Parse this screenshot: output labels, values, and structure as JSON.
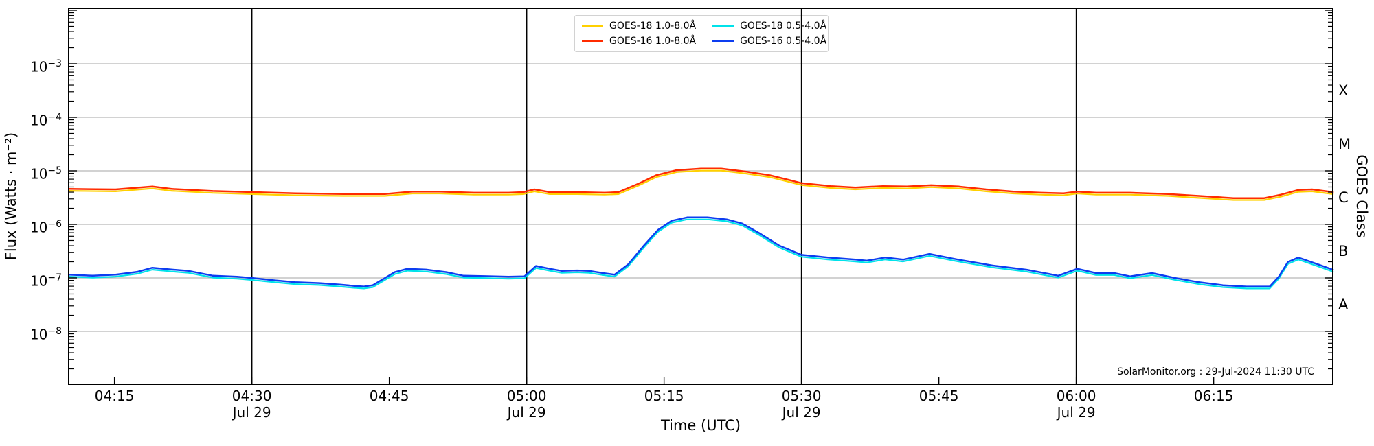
{
  "figure": {
    "source_note": "SolarMonitor.org : 29-Jul-2024 11:30 UTC"
  },
  "chart_data": {
    "type": "line",
    "title": "",
    "xlabel": "Time (UTC)",
    "ylabel_left": "Flux (Watts · m⁻²)",
    "ylabel_right": "GOES Class",
    "x_unit": "decimal_hours_utc",
    "date_sublabel": "Jul 29",
    "xlim_hours": [
      4.1667,
      6.4667
    ],
    "ylim": [
      1e-09,
      0.011
    ],
    "y_scale": "log",
    "grid": {
      "horizontal_decade_exponents": [
        -3,
        -4,
        -5,
        -6,
        -7,
        -8
      ],
      "vertical_hours": [
        4.5,
        5.0,
        5.5,
        6.0
      ],
      "horizontal_color": "#b6b6b6",
      "vertical_color": "#000000"
    },
    "x_ticks": [
      {
        "hour": 4.25,
        "label": "04:15",
        "sublabel": ""
      },
      {
        "hour": 4.5,
        "label": "04:30",
        "sublabel": "Jul 29"
      },
      {
        "hour": 4.75,
        "label": "04:45",
        "sublabel": ""
      },
      {
        "hour": 5.0,
        "label": "05:00",
        "sublabel": "Jul 29"
      },
      {
        "hour": 5.25,
        "label": "05:15",
        "sublabel": ""
      },
      {
        "hour": 5.5,
        "label": "05:30",
        "sublabel": "Jul 29"
      },
      {
        "hour": 5.75,
        "label": "05:45",
        "sublabel": ""
      },
      {
        "hour": 6.0,
        "label": "06:00",
        "sublabel": "Jul 29"
      },
      {
        "hour": 6.25,
        "label": "06:15",
        "sublabel": ""
      }
    ],
    "y_tick_exponents": [
      -3,
      -4,
      -5,
      -6,
      -7,
      -8
    ],
    "goes_class_ticks": [
      {
        "label": "X",
        "flux": 0.00032
      },
      {
        "label": "M",
        "flux": 3.2e-05
      },
      {
        "label": "C",
        "flux": 3.2e-06
      },
      {
        "label": "B",
        "flux": 3.2e-07
      },
      {
        "label": "A",
        "flux": 3.2e-08
      }
    ],
    "legend_order": [
      "GOES-18 1.0-8.0Å",
      "GOES-16 1.0-8.0Å",
      "GOES-18 0.5-4.0Å",
      "GOES-16 0.5-4.0Å"
    ],
    "series": [
      {
        "name": "GOES-18 1.0-8.0Å",
        "color": "#ffd000",
        "width": 2.2,
        "derived_from": "GOES-16 1.0-8.0Å",
        "scale": 0.92
      },
      {
        "name": "GOES-18 0.5-4.0Å",
        "color": "#00e2ea",
        "width": 2.2,
        "derived_from": "GOES-16 0.5-4.0Å",
        "scale": 0.92
      },
      {
        "name": "GOES-16 1.0-8.0Å",
        "color": "#ff2b00",
        "width": 2.5,
        "points": [
          [
            4.167,
            4.6e-06
          ],
          [
            4.252,
            4.5e-06
          ],
          [
            4.319,
            5.1e-06
          ],
          [
            4.354,
            4.6e-06
          ],
          [
            4.429,
            4.2e-06
          ],
          [
            4.502,
            4e-06
          ],
          [
            4.579,
            3.8e-06
          ],
          [
            4.667,
            3.7e-06
          ],
          [
            4.742,
            3.7e-06
          ],
          [
            4.792,
            4.1e-06
          ],
          [
            4.842,
            4.1e-06
          ],
          [
            4.904,
            3.9e-06
          ],
          [
            4.967,
            3.9e-06
          ],
          [
            4.994,
            4e-06
          ],
          [
            5.014,
            4.5e-06
          ],
          [
            5.042,
            4e-06
          ],
          [
            5.092,
            4e-06
          ],
          [
            5.142,
            3.9e-06
          ],
          [
            5.167,
            4e-06
          ],
          [
            5.204,
            5.8e-06
          ],
          [
            5.236,
            8.3e-06
          ],
          [
            5.273,
            1.03e-05
          ],
          [
            5.317,
            1.1e-05
          ],
          [
            5.354,
            1.1e-05
          ],
          [
            5.398,
            9.7e-06
          ],
          [
            5.442,
            8.3e-06
          ],
          [
            5.479,
            6.7e-06
          ],
          [
            5.5,
            5.9e-06
          ],
          [
            5.554,
            5.2e-06
          ],
          [
            5.598,
            4.9e-06
          ],
          [
            5.648,
            5.2e-06
          ],
          [
            5.692,
            5.1e-06
          ],
          [
            5.736,
            5.4e-06
          ],
          [
            5.786,
            5.1e-06
          ],
          [
            5.836,
            4.5e-06
          ],
          [
            5.886,
            4.1e-06
          ],
          [
            5.936,
            3.9e-06
          ],
          [
            5.977,
            3.8e-06
          ],
          [
            6.002,
            4.1e-06
          ],
          [
            6.036,
            3.9e-06
          ],
          [
            6.098,
            3.9e-06
          ],
          [
            6.167,
            3.7e-06
          ],
          [
            6.223,
            3.4e-06
          ],
          [
            6.286,
            3.1e-06
          ],
          [
            6.342,
            3.1e-06
          ],
          [
            6.373,
            3.6e-06
          ],
          [
            6.404,
            4.4e-06
          ],
          [
            6.429,
            4.5e-06
          ],
          [
            6.467,
            4e-06
          ]
        ]
      },
      {
        "name": "GOES-16 0.5-4.0Å",
        "color": "#0d3df0",
        "width": 2.5,
        "points": [
          [
            4.167,
            1.15e-07
          ],
          [
            4.211,
            1.1e-07
          ],
          [
            4.252,
            1.15e-07
          ],
          [
            4.292,
            1.3e-07
          ],
          [
            4.319,
            1.55e-07
          ],
          [
            4.348,
            1.45e-07
          ],
          [
            4.385,
            1.35e-07
          ],
          [
            4.429,
            1.1e-07
          ],
          [
            4.473,
            1.05e-07
          ],
          [
            4.502,
            9.9e-08
          ],
          [
            4.542,
            9e-08
          ],
          [
            4.579,
            8.3e-08
          ],
          [
            4.623,
            8e-08
          ],
          [
            4.66,
            7.5e-08
          ],
          [
            4.685,
            7.1e-08
          ],
          [
            4.704,
            6.9e-08
          ],
          [
            4.72,
            7.3e-08
          ],
          [
            4.739,
            9.5e-08
          ],
          [
            4.76,
            1.28e-07
          ],
          [
            4.783,
            1.48e-07
          ],
          [
            4.817,
            1.43e-07
          ],
          [
            4.854,
            1.28e-07
          ],
          [
            4.885,
            1.1e-07
          ],
          [
            4.923,
            1.08e-07
          ],
          [
            4.967,
            1.05e-07
          ],
          [
            4.996,
            1.07e-07
          ],
          [
            5.017,
            1.67e-07
          ],
          [
            5.042,
            1.48e-07
          ],
          [
            5.064,
            1.35e-07
          ],
          [
            5.092,
            1.38e-07
          ],
          [
            5.114,
            1.35e-07
          ],
          [
            5.139,
            1.23e-07
          ],
          [
            5.16,
            1.15e-07
          ],
          [
            5.185,
            1.8e-07
          ],
          [
            5.214,
            4.1e-07
          ],
          [
            5.239,
            7.9e-07
          ],
          [
            5.264,
            1.17e-06
          ],
          [
            5.292,
            1.35e-06
          ],
          [
            5.329,
            1.35e-06
          ],
          [
            5.364,
            1.24e-06
          ],
          [
            5.392,
            1.04e-06
          ],
          [
            5.423,
            6.9e-07
          ],
          [
            5.46,
            4e-07
          ],
          [
            5.5,
            2.7e-07
          ],
          [
            5.548,
            2.4e-07
          ],
          [
            5.598,
            2.2e-07
          ],
          [
            5.619,
            2.1e-07
          ],
          [
            5.652,
            2.4e-07
          ],
          [
            5.685,
            2.2e-07
          ],
          [
            5.733,
            2.8e-07
          ],
          [
            5.785,
            2.2e-07
          ],
          [
            5.848,
            1.7e-07
          ],
          [
            5.91,
            1.42e-07
          ],
          [
            5.967,
            1.1e-07
          ],
          [
            6.002,
            1.48e-07
          ],
          [
            6.036,
            1.23e-07
          ],
          [
            6.069,
            1.23e-07
          ],
          [
            6.098,
            1.07e-07
          ],
          [
            6.138,
            1.23e-07
          ],
          [
            6.179,
            1e-07
          ],
          [
            6.223,
            8.3e-08
          ],
          [
            6.267,
            7.3e-08
          ],
          [
            6.31,
            6.9e-08
          ],
          [
            6.352,
            6.9e-08
          ],
          [
            6.369,
            1.07e-07
          ],
          [
            6.385,
            1.98e-07
          ],
          [
            6.404,
            2.4e-07
          ],
          [
            6.439,
            1.8e-07
          ],
          [
            6.467,
            1.42e-07
          ]
        ]
      }
    ]
  }
}
